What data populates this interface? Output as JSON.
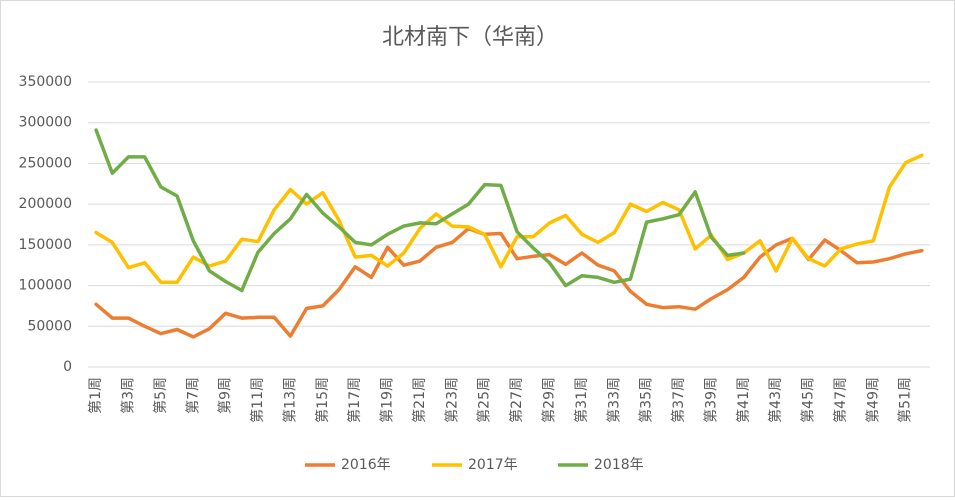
{
  "chart_data": {
    "type": "line",
    "title": "北材南下（华南）",
    "categories": [
      "第1周",
      null,
      "第3周",
      null,
      "第5周",
      null,
      "第7周",
      null,
      "第9周",
      null,
      "第11周",
      null,
      "第13周",
      null,
      "第15周",
      null,
      "第17周",
      null,
      "第19周",
      null,
      "第21周",
      null,
      "第23周",
      null,
      "第25周",
      null,
      "第27周",
      null,
      "第29周",
      null,
      "第31周",
      null,
      "第33周",
      null,
      "第35周",
      null,
      "第37周",
      null,
      "第39周",
      null,
      "第41周",
      null,
      "第43周",
      null,
      "第45周",
      null,
      "第47周",
      null,
      "第49周",
      null,
      "第51周",
      null
    ],
    "series": [
      {
        "name": "2016年",
        "color": "#ed7d31",
        "values": [
          77000,
          60000,
          60000,
          50000,
          41000,
          46000,
          37000,
          47000,
          66000,
          60000,
          61000,
          61000,
          38000,
          72000,
          75000,
          95000,
          123000,
          110000,
          147000,
          125000,
          130000,
          147000,
          153000,
          170000,
          163000,
          164000,
          133000,
          136000,
          138000,
          126000,
          140000,
          125000,
          118000,
          93000,
          77000,
          73000,
          74000,
          71000,
          84000,
          95000,
          110000,
          135000,
          150000,
          158000,
          132000,
          156000,
          143000,
          128000,
          129000,
          133000,
          139000,
          143000
        ]
      },
      {
        "name": "2017年",
        "color": "#ffc000",
        "values": [
          165000,
          153000,
          122000,
          128000,
          104000,
          104000,
          135000,
          124000,
          130000,
          157000,
          154000,
          193000,
          218000,
          200000,
          214000,
          180000,
          135000,
          137000,
          124000,
          140000,
          170000,
          188000,
          173000,
          172000,
          163000,
          123000,
          160000,
          160000,
          177000,
          186000,
          163000,
          153000,
          165000,
          200000,
          191000,
          202000,
          193000,
          145000,
          162000,
          132000,
          140000,
          155000,
          118000,
          158000,
          133000,
          124000,
          145000,
          151000,
          155000,
          221000,
          251000,
          260000
        ]
      },
      {
        "name": "2018年",
        "color": "#70ad47",
        "values": [
          291000,
          238000,
          258000,
          258000,
          221000,
          210000,
          155000,
          118000,
          105000,
          94000,
          141000,
          164000,
          182000,
          212000,
          189000,
          172000,
          153000,
          150000,
          163000,
          173000,
          177000,
          176000,
          188000,
          200000,
          224000,
          223000,
          166000,
          146000,
          128000,
          100000,
          112000,
          110000,
          104000,
          108000,
          178000,
          182000,
          187000,
          215000,
          159000,
          137000,
          140000,
          null,
          null,
          null,
          null,
          null,
          null,
          null,
          null,
          null,
          null,
          null
        ]
      }
    ],
    "ylim": [
      0,
      350000
    ],
    "yticks": [
      0,
      50000,
      100000,
      150000,
      200000,
      250000,
      300000,
      350000
    ],
    "grid": true,
    "legend": "bottom"
  }
}
